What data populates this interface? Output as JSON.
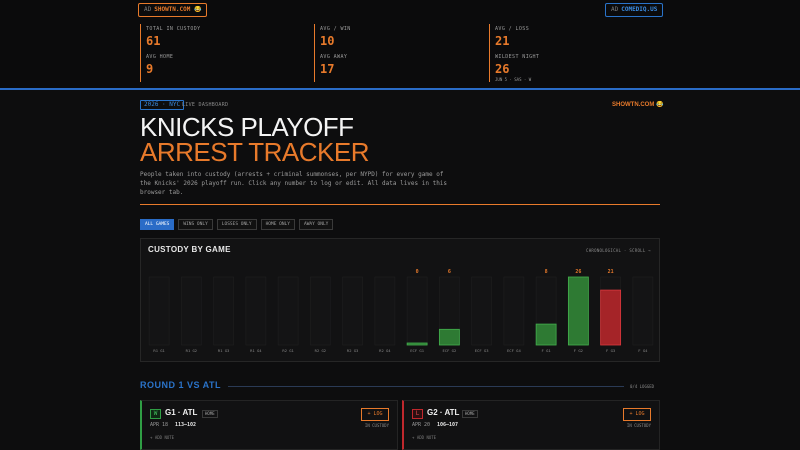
{
  "colors": {
    "accent": "#e87a2b",
    "blue": "#2a73c9",
    "win": "#2f9e44",
    "loss": "#c0282d",
    "bg": "#0b0b0c"
  },
  "ads": {
    "left": {
      "tag": "AD",
      "text": "SHOWTN.COM 😂"
    },
    "right": {
      "tag": "AD",
      "text": "COMEDIQ.US"
    }
  },
  "stats": [
    {
      "label": "TOTAL IN CUSTODY",
      "value": "61",
      "sub": ""
    },
    {
      "label": "AVG / WIN",
      "value": "10",
      "sub": ""
    },
    {
      "label": "AVG / LOSS",
      "value": "21",
      "sub": ""
    },
    {
      "label": "AVG HOME",
      "value": "9",
      "sub": ""
    },
    {
      "label": "AVG AWAY",
      "value": "17",
      "sub": ""
    },
    {
      "label": "WILDEST NIGHT",
      "value": "26",
      "sub": "JUN 5 · SAS · W"
    }
  ],
  "header": {
    "year_tag": "2026 · NYC",
    "live_label": "LIVE DASHBOARD",
    "brand": "SHOWTN.COM 😂",
    "title_line1": "KNICKS PLAYOFF",
    "title_line2": "ARREST TRACKER",
    "description": "People taken into custody (arrests + criminal summonses, per NYPD) for every game of the Knicks' 2026 playoff run. Click any number to log or edit. All data lives in this browser tab."
  },
  "filters": [
    {
      "label": "ALL GAMES",
      "active": true
    },
    {
      "label": "WINS ONLY",
      "active": false
    },
    {
      "label": "LOSSES ONLY",
      "active": false
    },
    {
      "label": "HOME ONLY",
      "active": false
    },
    {
      "label": "AWAY ONLY",
      "active": false
    }
  ],
  "chart": {
    "title": "CUSTODY BY GAME",
    "sort_label": "CHRONOLOGICAL · SCROLL →"
  },
  "chart_data": {
    "type": "bar",
    "title": "CUSTODY BY GAME",
    "categories": [
      "R1 G1",
      "R1 G2",
      "R1 G3",
      "R1 G4",
      "R2 G1",
      "R2 G2",
      "R2 G3",
      "R2 G4",
      "ECF G1",
      "ECF G2",
      "ECF G3",
      "ECF G4",
      "F G1",
      "F G2",
      "F G3",
      "F G4"
    ],
    "values": [
      null,
      null,
      null,
      null,
      null,
      null,
      null,
      null,
      0,
      6,
      null,
      null,
      8,
      26,
      21,
      null
    ],
    "value_labels": [
      "",
      "",
      "",
      "",
      "",
      "",
      "",
      "",
      "0",
      "6",
      "",
      "",
      "8",
      "26",
      "21",
      ""
    ],
    "result": [
      "",
      "",
      "",
      "",
      "",
      "",
      "",
      "",
      "W",
      "W",
      "",
      "",
      "W",
      "W",
      "L",
      ""
    ],
    "ylim": [
      0,
      26
    ],
    "grid": false,
    "legend": "none"
  },
  "round": {
    "title": "ROUND 1 VS ATL",
    "count": "0/4 LOGGED"
  },
  "games": [
    {
      "result": "W",
      "name": "G1 · ATL",
      "location": "HOME",
      "date": "APR 18",
      "score": "113–102",
      "log_label": "+ LOG",
      "custody_label": "IN CUSTODY",
      "note_label": "+ ADD NOTE"
    },
    {
      "result": "L",
      "name": "G2 · ATL",
      "location": "HOME",
      "date": "APR 20",
      "score": "106–107",
      "log_label": "+ LOG",
      "custody_label": "IN CUSTODY",
      "note_label": "+ ADD NOTE"
    }
  ]
}
